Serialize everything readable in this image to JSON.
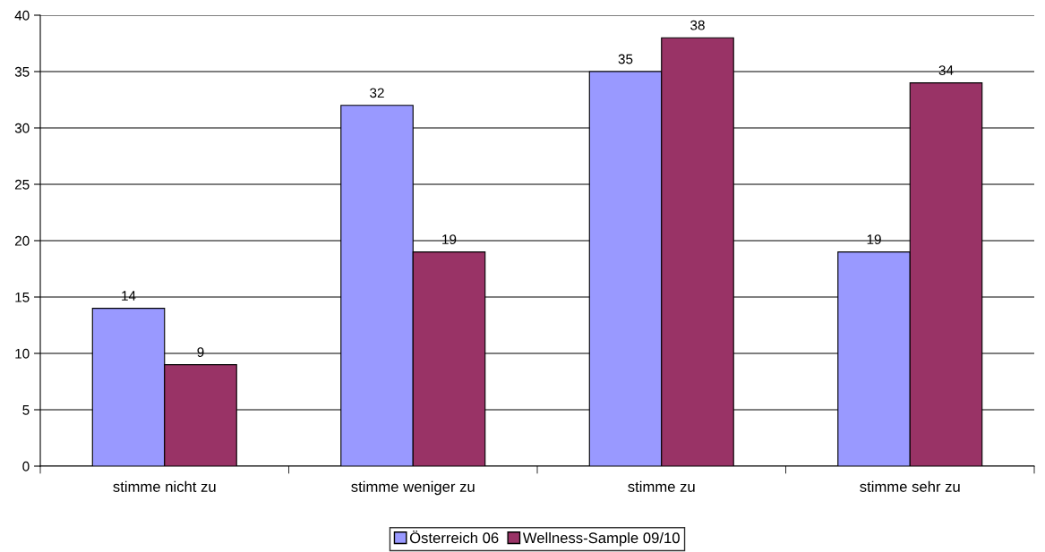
{
  "chart_data": {
    "type": "bar",
    "categories": [
      "stimme nicht zu",
      "stimme weniger zu",
      "stimme zu",
      "stimme sehr zu"
    ],
    "series": [
      {
        "name": "Österreich 06",
        "color": "#9999ff",
        "values": [
          14,
          32,
          35,
          19
        ]
      },
      {
        "name": "Wellness-Sample 09/10",
        "color": "#993366",
        "values": [
          9,
          19,
          38,
          34
        ]
      }
    ],
    "ylim": [
      0,
      40
    ],
    "yticks": [
      0,
      5,
      10,
      15,
      20,
      25,
      30,
      35,
      40
    ],
    "grid": "y",
    "legend": "bottom",
    "data_labels": true
  }
}
